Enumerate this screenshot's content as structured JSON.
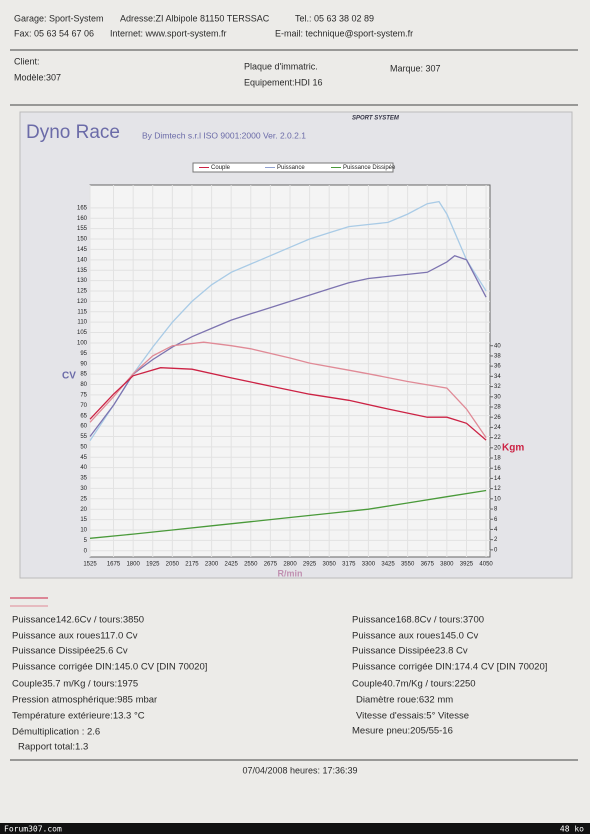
{
  "header": {
    "garage": "Garage: Sport-System",
    "address": "Adresse:ZI Albipole 81150 TERSSAC",
    "tel": "Tel.: 05 63 38 02 89",
    "fax": "Fax: 05 63 54 67 06",
    "internet": "Internet: www.sport-system.fr",
    "email": "E-mail: technique@sport-system.fr"
  },
  "client": {
    "client": "Client:",
    "model": "Modèle:307",
    "plate": "Plaque d'immatric.",
    "equipment": "Equipement:HDI 16",
    "brand": "Marque: 307"
  },
  "report": {
    "title": "Dyno Race",
    "subtitle": "By Dimtech s.r.l  ISO 9001:2000  Ver. 2.0.2.1",
    "logo": "SPORT SYSTEM"
  },
  "chart_data": {
    "type": "line",
    "legend": [
      {
        "name": "Couple",
        "color": "#cc2244"
      },
      {
        "name": "Puissance",
        "color": "#8fa0d0"
      },
      {
        "name": "Puissance Dissipée",
        "color": "#4a9a3a"
      }
    ],
    "x_label": "R/min",
    "y_label": "CV",
    "y2_label": "Kgm",
    "xlim": [
      1525,
      4075
    ],
    "ylim": [
      -3,
      176
    ],
    "y2lim": [
      -1.4,
      71.5
    ],
    "xticks": [
      1525,
      1675,
      1800,
      1925,
      2050,
      2175,
      2300,
      2425,
      2550,
      2675,
      2800,
      2925,
      3050,
      3175,
      3300,
      3425,
      3550,
      3675,
      3800,
      3925,
      4050
    ],
    "yticks": [
      0,
      5,
      10,
      15,
      20,
      25,
      30,
      35,
      40,
      45,
      50,
      55,
      60,
      65,
      70,
      75,
      80,
      85,
      90,
      95,
      100,
      105,
      110,
      115,
      120,
      125,
      130,
      135,
      140,
      145,
      150,
      155,
      160,
      165
    ],
    "y2ticks": [
      0,
      2,
      4,
      6,
      8,
      10,
      12,
      14,
      16,
      18,
      20,
      22,
      24,
      26,
      28,
      30,
      32,
      34,
      36,
      38,
      40
    ],
    "series": [
      {
        "color": "#a9cbe6",
        "x": [
          1525,
          1675,
          1800,
          1925,
          2050,
          2175,
          2300,
          2425,
          2550,
          2675,
          2800,
          2925,
          3050,
          3175,
          3300,
          3425,
          3550,
          3675,
          3750,
          3800,
          3925,
          4050
        ],
        "values": [
          53,
          70,
          85,
          98,
          110,
          120,
          128,
          134,
          138,
          142,
          146,
          150,
          153,
          156,
          157,
          158,
          162,
          167,
          168,
          162,
          140,
          125
        ]
      },
      {
        "color": "#7d74b0",
        "x": [
          1525,
          1675,
          1800,
          1925,
          2050,
          2175,
          2300,
          2425,
          2550,
          2675,
          2800,
          2925,
          3050,
          3175,
          3300,
          3425,
          3550,
          3675,
          3800,
          3850,
          3925,
          4050
        ],
        "values": [
          55,
          70,
          85,
          92,
          98,
          103,
          107,
          111,
          114,
          117,
          120,
          123,
          126,
          129,
          131,
          132,
          133,
          134,
          139,
          142,
          140,
          122
        ]
      },
      {
        "color": "#e08a96",
        "axis": "y2",
        "x": [
          1525,
          1675,
          1800,
          1925,
          2050,
          2250,
          2425,
          2550,
          2800,
          2925,
          3175,
          3300,
          3550,
          3800,
          3925,
          4050
        ],
        "values": [
          25,
          30,
          34.5,
          38,
          40,
          40.7,
          40,
          39.4,
          37.6,
          36.6,
          35.2,
          34.5,
          33,
          31.7,
          27.6,
          22
        ]
      },
      {
        "color": "#cc2244",
        "axis": "y2",
        "x": [
          1525,
          1675,
          1800,
          1975,
          2175,
          2425,
          2675,
          2925,
          3175,
          3425,
          3675,
          3800,
          3925,
          4050
        ],
        "values": [
          25.6,
          30.5,
          34.1,
          35.7,
          35.4,
          33.7,
          32.1,
          30.5,
          29.3,
          27.6,
          26,
          26,
          24.8,
          21.5
        ]
      },
      {
        "color": "#4a9a3a",
        "x": [
          1525,
          1800,
          2050,
          2300,
          2550,
          2800,
          3050,
          3300,
          3550,
          3800,
          4050
        ],
        "values": [
          6,
          8,
          10,
          12,
          14,
          16,
          18,
          20,
          23,
          26,
          29
        ]
      }
    ]
  },
  "results": {
    "left": [
      "Puissance142.6Cv / tours:3850",
      "Puissance aux roues117.0 Cv",
      "Puissance Dissipée25.6 Cv",
      "Puissance corrigée DIN:145.0 CV  [DIN 70020]",
      "Couple35.7 m/Kg / tours:1975",
      "Pression atmosphérique:985 mbar",
      "Température extérieure:13.3 °C",
      "Démultiplication : 2.6",
      "Rapport total:1.3"
    ],
    "right": [
      "Puissance168.8Cv / tours:3700",
      "Puissance aux roues145.0 Cv",
      "Puissance Dissipée23.8 Cv",
      "Puissance corrigée DIN:174.4 CV  [DIN 70020]",
      "Couple40.7m/Kg / tours:2250",
      "Diamètre roue:632 mm",
      "Vitesse d'essais:5° Vitesse",
      "Mesure pneu:205/55-16"
    ]
  },
  "footer": {
    "date": "07/04/2008 heures:  17:36:39",
    "site": "Forum307.com",
    "size": "48 ko"
  }
}
